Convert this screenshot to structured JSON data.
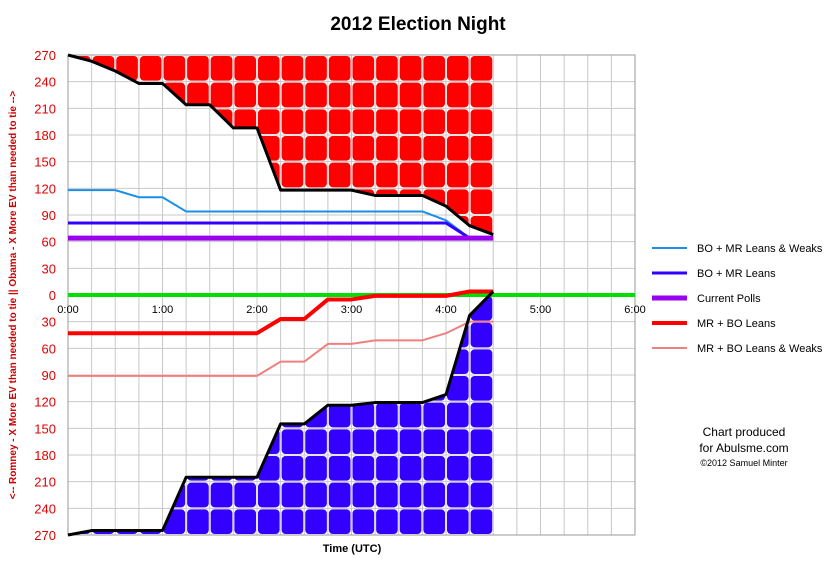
{
  "chart_data": {
    "type": "line",
    "title": "2012 Election Night",
    "xlabel": "Time (UTC)",
    "ylabel": "<-- Romney - X More EV than needed to tie || Obama - X More EV than needed to tie -->",
    "x_ticks": [
      "0:00",
      "1:00",
      "2:00",
      "3:00",
      "4:00",
      "5:00",
      "6:00"
    ],
    "xlim_hours": [
      0,
      6
    ],
    "y_tick_labels": [
      "270",
      "240",
      "210",
      "180",
      "150",
      "120",
      "90",
      "60",
      "30",
      "0",
      "30",
      "60",
      "90",
      "120",
      "150",
      "180",
      "210",
      "240",
      "270"
    ],
    "ylim": [
      -270,
      270
    ],
    "grid": true,
    "legend_position": "right",
    "colors": {
      "obama_fill": "#ff0000",
      "romney_fill": "#3300ff",
      "boundary": "#000000",
      "zero_line": "#00dd00",
      "grid": "#c8c8c8"
    },
    "series": [
      {
        "name": "BO + MR Leans & Weaks",
        "color": "#1a8fe8",
        "width": 2,
        "points": [
          [
            0,
            118
          ],
          [
            0.5,
            118
          ],
          [
            0.75,
            110
          ],
          [
            1,
            110
          ],
          [
            1.25,
            94
          ],
          [
            3.5,
            94
          ],
          [
            3.75,
            94
          ],
          [
            4,
            84
          ],
          [
            4.25,
            64
          ]
        ]
      },
      {
        "name": "BO + MR Leans",
        "color": "#3300ff",
        "width": 3,
        "points": [
          [
            0,
            81
          ],
          [
            3.75,
            81
          ],
          [
            4,
            81
          ],
          [
            4.25,
            64
          ]
        ]
      },
      {
        "name": "Current Polls",
        "color": "#9900ee",
        "width": 5,
        "points": [
          [
            0,
            64
          ],
          [
            4.5,
            64
          ]
        ]
      },
      {
        "name": "MR + BO Leans",
        "color": "#ff0000",
        "width": 4,
        "points": [
          [
            0,
            -43
          ],
          [
            2,
            -43
          ],
          [
            2.25,
            -27
          ],
          [
            2.5,
            -27
          ],
          [
            2.75,
            -5
          ],
          [
            3,
            -5
          ],
          [
            3.25,
            -1
          ],
          [
            4,
            -1
          ],
          [
            4.25,
            4
          ],
          [
            4.5,
            4
          ]
        ]
      },
      {
        "name": "MR + BO Leans & Weaks",
        "color": "#f08080",
        "width": 2,
        "points": [
          [
            0,
            -91
          ],
          [
            2,
            -91
          ],
          [
            2.25,
            -75
          ],
          [
            2.5,
            -75
          ],
          [
            2.75,
            -55
          ],
          [
            3,
            -55
          ],
          [
            3.25,
            -51
          ],
          [
            3.75,
            -51
          ],
          [
            4,
            -43
          ],
          [
            4.25,
            -30
          ],
          [
            4.5,
            -30
          ]
        ]
      }
    ],
    "obama_boundary": [
      [
        0,
        270
      ],
      [
        0.25,
        263
      ],
      [
        0.5,
        252
      ],
      [
        0.75,
        238
      ],
      [
        1,
        238
      ],
      [
        1.25,
        214
      ],
      [
        1.5,
        214
      ],
      [
        1.75,
        188
      ],
      [
        2,
        188
      ],
      [
        2.25,
        118
      ],
      [
        3,
        118
      ],
      [
        3.25,
        112
      ],
      [
        3.75,
        112
      ],
      [
        4,
        100
      ],
      [
        4.25,
        78
      ],
      [
        4.5,
        68
      ]
    ],
    "romney_boundary": [
      [
        0,
        -270
      ],
      [
        0.25,
        -265
      ],
      [
        1,
        -265
      ],
      [
        1.25,
        -205
      ],
      [
        2,
        -205
      ],
      [
        2.25,
        -145
      ],
      [
        2.5,
        -145
      ],
      [
        2.75,
        -124
      ],
      [
        3,
        -124
      ],
      [
        3.25,
        -121
      ],
      [
        3.75,
        -121
      ],
      [
        4,
        -112
      ],
      [
        4.25,
        -23
      ],
      [
        4.5,
        4
      ]
    ]
  },
  "credit": {
    "line1": "Chart produced",
    "line2": "for Abulsme.com",
    "line3": "©2012 Samuel Minter"
  }
}
